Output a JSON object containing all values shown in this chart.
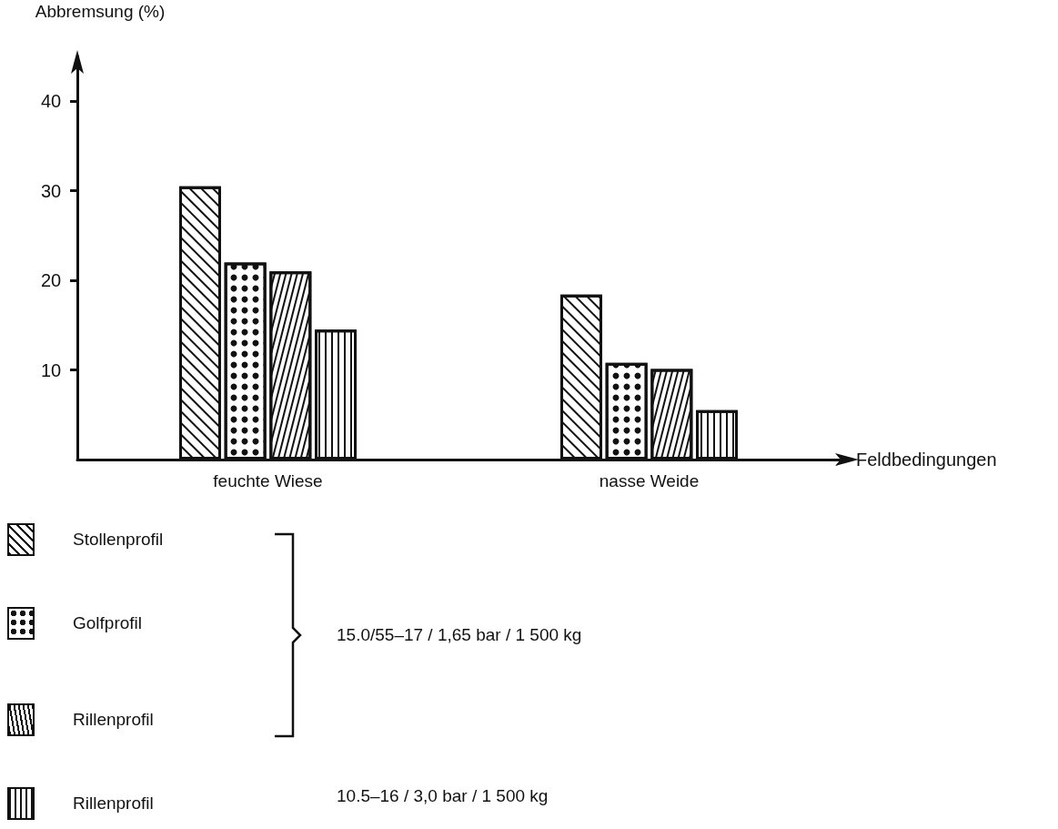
{
  "chart_data": {
    "type": "bar",
    "xlabel": "Feldbedingungen",
    "ylabel": "Abbremsung (%)",
    "categories": [
      "feuchte Wiese",
      "nasse Weide"
    ],
    "series": [
      {
        "name": "Stollenprofil",
        "color": "#ffffff",
        "values": [
          30.5,
          18.4
        ]
      },
      {
        "name": "Golfprofil",
        "color": "#ffffff",
        "values": [
          22,
          10.8
        ]
      },
      {
        "name": "Rillenprofil",
        "color": "#ffffff",
        "values": [
          21,
          10.1
        ]
      },
      {
        "name": "Rillenprofil",
        "color": "#ffffff",
        "values": [
          14.5,
          5.5
        ]
      }
    ],
    "ylim": [
      0,
      45
    ],
    "yticks": [
      10,
      20,
      30,
      40
    ],
    "grid": false,
    "legend": "bottom left",
    "annotations": [
      "15.0/55–17 / 1,65 bar / 1 500 kg",
      "10.5–16 / 3,0 bar / 1 500 kg"
    ]
  }
}
